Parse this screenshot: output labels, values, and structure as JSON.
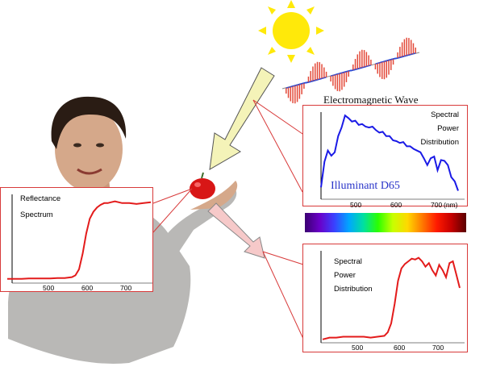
{
  "em_wave": {
    "title": "Electromagnetic Wave"
  },
  "illuminant_panel": {
    "label_lines": [
      "Spectral",
      "Power",
      "Distribution"
    ],
    "annotation": "Illuminant D65",
    "ticks": [
      "500",
      "600",
      "700"
    ],
    "unit": "(nm)",
    "line_color": "#1a1ae6"
  },
  "reflectance_panel": {
    "label_lines": [
      "Reflectance",
      "Spectrum"
    ],
    "ticks": [
      "500",
      "600",
      "700"
    ],
    "line_color": "#e31b1b"
  },
  "reflected_panel": {
    "label_lines": [
      "Spectral",
      "Power",
      "Distribution"
    ],
    "ticks": [
      "500",
      "600",
      "700"
    ],
    "line_color": "#e31b1b"
  },
  "colors": {
    "sun": "#ffe90a",
    "sun_ray": "#ffe90a",
    "incident_arrow": "#f4f3b8",
    "reflected_arrow": "#f6c9c9",
    "panel_border": "#d83a3a",
    "apple": "#d81616"
  },
  "chart_data": [
    {
      "type": "line",
      "title": "Spectral Power Distribution",
      "annotation": "Illuminant D65",
      "xlabel": "(nm)",
      "xlim": [
        380,
        780
      ],
      "x": [
        380,
        390,
        400,
        410,
        420,
        430,
        440,
        450,
        460,
        470,
        480,
        490,
        500,
        510,
        520,
        530,
        540,
        550,
        560,
        570,
        580,
        590,
        600,
        610,
        620,
        630,
        640,
        650,
        660,
        670,
        680,
        690,
        700,
        710,
        720,
        730,
        740,
        750,
        760,
        770,
        780
      ],
      "series": [
        {
          "values": [
            0.12,
            0.42,
            0.55,
            0.49,
            0.53,
            0.72,
            0.82,
            0.96,
            0.93,
            0.89,
            0.9,
            0.85,
            0.86,
            0.83,
            0.82,
            0.83,
            0.79,
            0.76,
            0.77,
            0.72,
            0.72,
            0.67,
            0.66,
            0.64,
            0.65,
            0.6,
            0.6,
            0.57,
            0.55,
            0.53,
            0.46,
            0.38,
            0.46,
            0.48,
            0.32,
            0.44,
            0.43,
            0.38,
            0.24,
            0.19,
            0.08
          ]
        }
      ]
    },
    {
      "type": "line",
      "title": "Reflectance Spectrum",
      "xlim": [
        380,
        780
      ],
      "x": [
        380,
        400,
        420,
        440,
        460,
        480,
        500,
        520,
        540,
        560,
        570,
        580,
        590,
        600,
        610,
        620,
        630,
        640,
        650,
        660,
        670,
        680,
        700,
        720,
        740,
        760,
        780
      ],
      "series": [
        {
          "values": [
            0.03,
            0.03,
            0.03,
            0.035,
            0.035,
            0.035,
            0.035,
            0.04,
            0.04,
            0.05,
            0.07,
            0.14,
            0.32,
            0.55,
            0.72,
            0.8,
            0.85,
            0.88,
            0.9,
            0.9,
            0.91,
            0.92,
            0.9,
            0.9,
            0.89,
            0.9,
            0.91
          ]
        }
      ]
    },
    {
      "type": "line",
      "title": "Spectral Power Distribution",
      "xlim": [
        380,
        780
      ],
      "x": [
        380,
        400,
        420,
        440,
        460,
        480,
        500,
        520,
        540,
        560,
        570,
        580,
        590,
        600,
        610,
        620,
        630,
        640,
        650,
        660,
        670,
        680,
        690,
        700,
        710,
        720,
        730,
        740,
        750,
        760,
        770,
        780
      ],
      "series": [
        {
          "values": [
            0.02,
            0.04,
            0.04,
            0.05,
            0.05,
            0.05,
            0.05,
            0.04,
            0.05,
            0.06,
            0.1,
            0.2,
            0.42,
            0.68,
            0.82,
            0.87,
            0.9,
            0.93,
            0.92,
            0.94,
            0.9,
            0.84,
            0.88,
            0.8,
            0.74,
            0.86,
            0.8,
            0.72,
            0.88,
            0.9,
            0.75,
            0.6
          ]
        }
      ]
    }
  ]
}
